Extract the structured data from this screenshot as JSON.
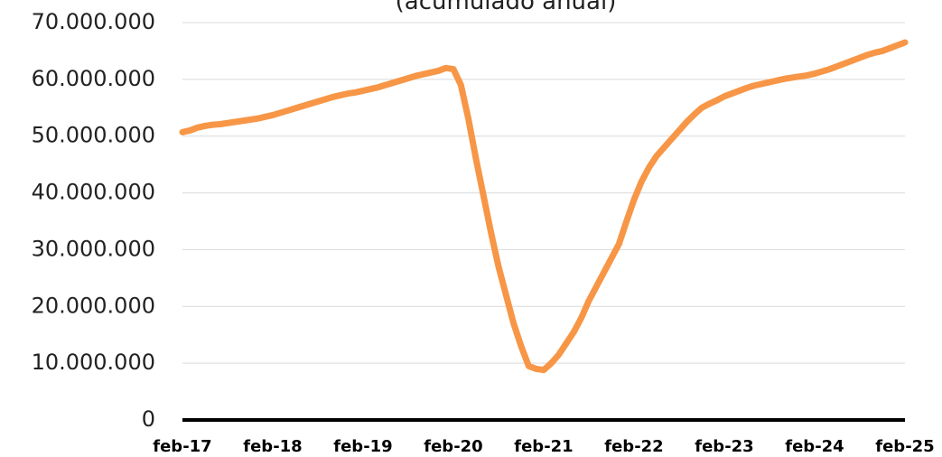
{
  "chart_data": {
    "type": "line",
    "title": "(acumulado anual)",
    "categories": [
      "feb-17",
      null,
      null,
      null,
      null,
      null,
      null,
      null,
      null,
      null,
      null,
      null,
      "feb-18",
      null,
      null,
      null,
      null,
      null,
      null,
      null,
      null,
      null,
      null,
      null,
      "feb-19",
      null,
      null,
      null,
      null,
      null,
      null,
      null,
      null,
      null,
      null,
      null,
      "feb-20",
      null,
      null,
      null,
      null,
      null,
      null,
      null,
      null,
      null,
      null,
      null,
      "feb-21",
      null,
      null,
      null,
      null,
      null,
      null,
      null,
      null,
      null,
      null,
      null,
      "feb-22",
      null,
      null,
      null,
      null,
      null,
      null,
      null,
      null,
      null,
      null,
      null,
      "feb-23",
      null,
      null,
      null,
      null,
      null,
      null,
      null,
      null,
      null,
      null,
      null,
      "feb-24",
      null,
      null,
      null,
      null,
      null,
      null,
      null,
      null,
      null,
      null,
      null,
      "feb-25"
    ],
    "series": [
      {
        "color": "#f79646",
        "values": [
          50700000,
          51000000,
          51500000,
          51800000,
          52000000,
          52100000,
          52300000,
          52500000,
          52700000,
          52900000,
          53100000,
          53400000,
          53700000,
          54100000,
          54500000,
          54900000,
          55300000,
          55700000,
          56100000,
          56500000,
          56900000,
          57200000,
          57500000,
          57700000,
          58000000,
          58300000,
          58600000,
          59000000,
          59400000,
          59800000,
          60200000,
          60600000,
          60900000,
          61200000,
          61500000,
          62000000,
          61800000,
          59000000,
          53000000,
          46000000,
          39500000,
          33000000,
          27000000,
          22000000,
          17000000,
          13000000,
          9500000,
          9000000,
          8800000,
          10000000,
          11500000,
          13500000,
          15500000,
          18000000,
          21000000,
          23500000,
          26000000,
          28500000,
          31000000,
          35000000,
          38800000,
          42000000,
          44500000,
          46500000,
          48000000,
          49500000,
          51000000,
          52500000,
          53800000,
          55000000,
          55700000,
          56300000,
          57000000,
          57500000,
          58000000,
          58500000,
          58900000,
          59200000,
          59500000,
          59800000,
          60100000,
          60300000,
          60500000,
          60700000,
          61000000,
          61400000,
          61800000,
          62300000,
          62800000,
          63300000,
          63800000,
          64300000,
          64700000,
          65000000,
          65500000,
          66000000,
          66500000
        ]
      }
    ],
    "ylim": [
      0,
      70000000
    ],
    "yticks": [
      0,
      {
        "value": 10000000,
        "label": "10.000.000"
      },
      {
        "value": 20000000,
        "label": "20.000.000"
      },
      {
        "value": 30000000,
        "label": "30.000.000"
      },
      {
        "value": 40000000,
        "label": "40.000.000"
      },
      {
        "value": 50000000,
        "label": "50.000.000"
      },
      {
        "value": 60000000,
        "label": "60.000.000"
      },
      {
        "value": 70000000,
        "label": "70.000.000"
      }
    ],
    "grid": true
  }
}
